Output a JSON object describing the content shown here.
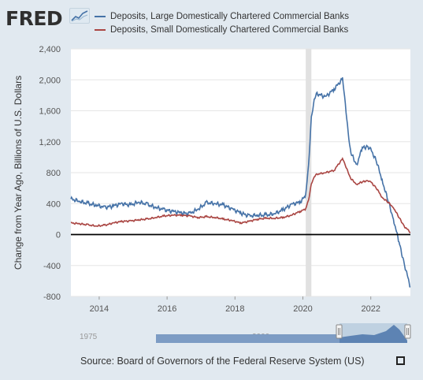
{
  "header": {
    "logo_text": "FRED"
  },
  "chart_data": {
    "type": "line",
    "ylabel": "Change from Year Ago, Billions of U.S. Dollars",
    "xlabel": "",
    "x_range": [
      "2013-03",
      "2023-03"
    ],
    "ylim": [
      -800,
      2400
    ],
    "x_ticks": [
      "2014",
      "2016",
      "2018",
      "2020",
      "2022"
    ],
    "y_ticks": [
      "-800",
      "-400",
      "0",
      "400",
      "800",
      "1,200",
      "1,600",
      "2,000",
      "2,400"
    ],
    "grid": "horizontal",
    "zero_line": true,
    "recession_shading": [
      [
        "2020-02",
        "2020-04"
      ]
    ],
    "legend_position": "top-left",
    "series": [
      {
        "name": "Deposits, Large Domestically Chartered Commercial Banks",
        "color": "#4572a7",
        "points": [
          [
            "2013-03",
            460
          ],
          [
            "2013-06",
            430
          ],
          [
            "2013-09",
            400
          ],
          [
            "2013-12",
            380
          ],
          [
            "2014-03",
            350
          ],
          [
            "2014-06",
            370
          ],
          [
            "2014-09",
            400
          ],
          [
            "2014-12",
            380
          ],
          [
            "2015-03",
            420
          ],
          [
            "2015-06",
            390
          ],
          [
            "2015-09",
            350
          ],
          [
            "2015-12",
            320
          ],
          [
            "2016-03",
            300
          ],
          [
            "2016-06",
            280
          ],
          [
            "2016-09",
            270
          ],
          [
            "2016-12",
            330
          ],
          [
            "2017-03",
            410
          ],
          [
            "2017-06",
            400
          ],
          [
            "2017-09",
            380
          ],
          [
            "2017-12",
            330
          ],
          [
            "2018-03",
            280
          ],
          [
            "2018-06",
            240
          ],
          [
            "2018-09",
            250
          ],
          [
            "2018-12",
            250
          ],
          [
            "2019-03",
            270
          ],
          [
            "2019-06",
            320
          ],
          [
            "2019-09",
            390
          ],
          [
            "2019-12",
            420
          ],
          [
            "2020-02",
            500
          ],
          [
            "2020-03",
            900
          ],
          [
            "2020-04",
            1500
          ],
          [
            "2020-05",
            1750
          ],
          [
            "2020-06",
            1820
          ],
          [
            "2020-09",
            1780
          ],
          [
            "2020-12",
            1880
          ],
          [
            "2021-03",
            2010
          ],
          [
            "2021-04",
            1700
          ],
          [
            "2021-05",
            1300
          ],
          [
            "2021-06",
            1050
          ],
          [
            "2021-08",
            900
          ],
          [
            "2021-10",
            1120
          ],
          [
            "2021-12",
            1140
          ],
          [
            "2022-01",
            1100
          ],
          [
            "2022-03",
            950
          ],
          [
            "2022-05",
            700
          ],
          [
            "2022-07",
            450
          ],
          [
            "2022-09",
            200
          ],
          [
            "2022-11",
            -100
          ],
          [
            "2023-01",
            -400
          ],
          [
            "2023-03",
            -680
          ]
        ]
      },
      {
        "name": "Deposits, Small Domestically Chartered Commercial Banks",
        "color": "#aa4643",
        "points": [
          [
            "2013-03",
            150
          ],
          [
            "2013-06",
            140
          ],
          [
            "2013-09",
            125
          ],
          [
            "2013-12",
            110
          ],
          [
            "2014-03",
            120
          ],
          [
            "2014-06",
            150
          ],
          [
            "2014-09",
            170
          ],
          [
            "2014-12",
            175
          ],
          [
            "2015-03",
            190
          ],
          [
            "2015-06",
            200
          ],
          [
            "2015-09",
            220
          ],
          [
            "2015-12",
            240
          ],
          [
            "2016-03",
            250
          ],
          [
            "2016-06",
            250
          ],
          [
            "2016-09",
            240
          ],
          [
            "2016-12",
            220
          ],
          [
            "2017-03",
            230
          ],
          [
            "2017-06",
            220
          ],
          [
            "2017-09",
            200
          ],
          [
            "2017-12",
            180
          ],
          [
            "2018-03",
            150
          ],
          [
            "2018-06",
            170
          ],
          [
            "2018-09",
            200
          ],
          [
            "2018-12",
            210
          ],
          [
            "2019-03",
            210
          ],
          [
            "2019-06",
            220
          ],
          [
            "2019-09",
            250
          ],
          [
            "2019-12",
            300
          ],
          [
            "2020-02",
            330
          ],
          [
            "2020-03",
            450
          ],
          [
            "2020-04",
            650
          ],
          [
            "2020-05",
            750
          ],
          [
            "2020-06",
            780
          ],
          [
            "2020-09",
            800
          ],
          [
            "2020-12",
            830
          ],
          [
            "2021-03",
            980
          ],
          [
            "2021-04",
            900
          ],
          [
            "2021-05",
            800
          ],
          [
            "2021-06",
            720
          ],
          [
            "2021-08",
            650
          ],
          [
            "2021-10",
            680
          ],
          [
            "2021-12",
            700
          ],
          [
            "2022-01",
            680
          ],
          [
            "2022-03",
            600
          ],
          [
            "2022-05",
            480
          ],
          [
            "2022-07",
            420
          ],
          [
            "2022-09",
            350
          ],
          [
            "2022-11",
            220
          ],
          [
            "2023-01",
            100
          ],
          [
            "2023-03",
            30
          ]
        ]
      }
    ],
    "navigator": {
      "labels": [
        "1975",
        "2000"
      ]
    }
  },
  "footer": {
    "source": "Source: Board of Governors of the Federal Reserve System (US)"
  },
  "icons": {
    "fullscreen": "fullscreen-icon",
    "logo_graph": "fred-graph-icon"
  }
}
